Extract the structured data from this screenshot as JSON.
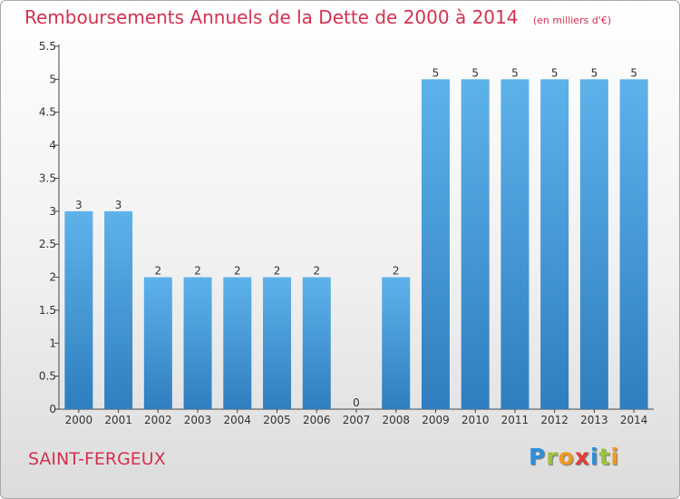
{
  "header": {
    "title": "Remboursements Annuels de la Dette de 2000 à 2014",
    "unit": "(en milliers d'€)"
  },
  "footer": {
    "commune": "SAINT-FERGEUX",
    "logo": "Proxiti",
    "logo_letters": [
      {
        "ch": "P",
        "color": "#2e8fd8"
      },
      {
        "ch": "r",
        "color": "#9ac43c"
      },
      {
        "ch": "o",
        "color": "#f29a1f"
      },
      {
        "ch": "x",
        "color": "#e03b3b"
      },
      {
        "ch": "i",
        "color": "#2e8fd8"
      },
      {
        "ch": "t",
        "color": "#9ac43c"
      },
      {
        "ch": "i",
        "color": "#f29a1f"
      }
    ]
  },
  "colors": {
    "title": "#d4314f",
    "bar_top": "#5eb2ea",
    "bar_bottom": "#2f7ebf",
    "axis": "#444444"
  },
  "chart_data": {
    "type": "bar",
    "title": "Remboursements Annuels de la Dette de 2000 à 2014",
    "categories": [
      "2000",
      "2001",
      "2002",
      "2003",
      "2004",
      "2005",
      "2006",
      "2007",
      "2008",
      "2009",
      "2010",
      "2011",
      "2012",
      "2013",
      "2014"
    ],
    "values": [
      3,
      3,
      2,
      2,
      2,
      2,
      2,
      0,
      2,
      5,
      5,
      5,
      5,
      5,
      5
    ],
    "value_labels": [
      "3",
      "3",
      "2",
      "2",
      "2",
      "2",
      "2",
      "0",
      "2",
      "5",
      "5",
      "5",
      "5",
      "5",
      "5"
    ],
    "yticks": [
      0,
      0.5,
      1,
      1.5,
      2,
      2.5,
      3,
      3.5,
      4,
      4.5,
      5,
      5.5
    ],
    "ytick_labels": [
      "0",
      "0.5",
      "1",
      "1.5",
      "2",
      "2.5",
      "3",
      "3.5",
      "4",
      "4.5",
      "5",
      "5.5"
    ],
    "ylim": [
      0,
      5.5
    ],
    "xlabel": "",
    "ylabel": "",
    "grid": false
  }
}
